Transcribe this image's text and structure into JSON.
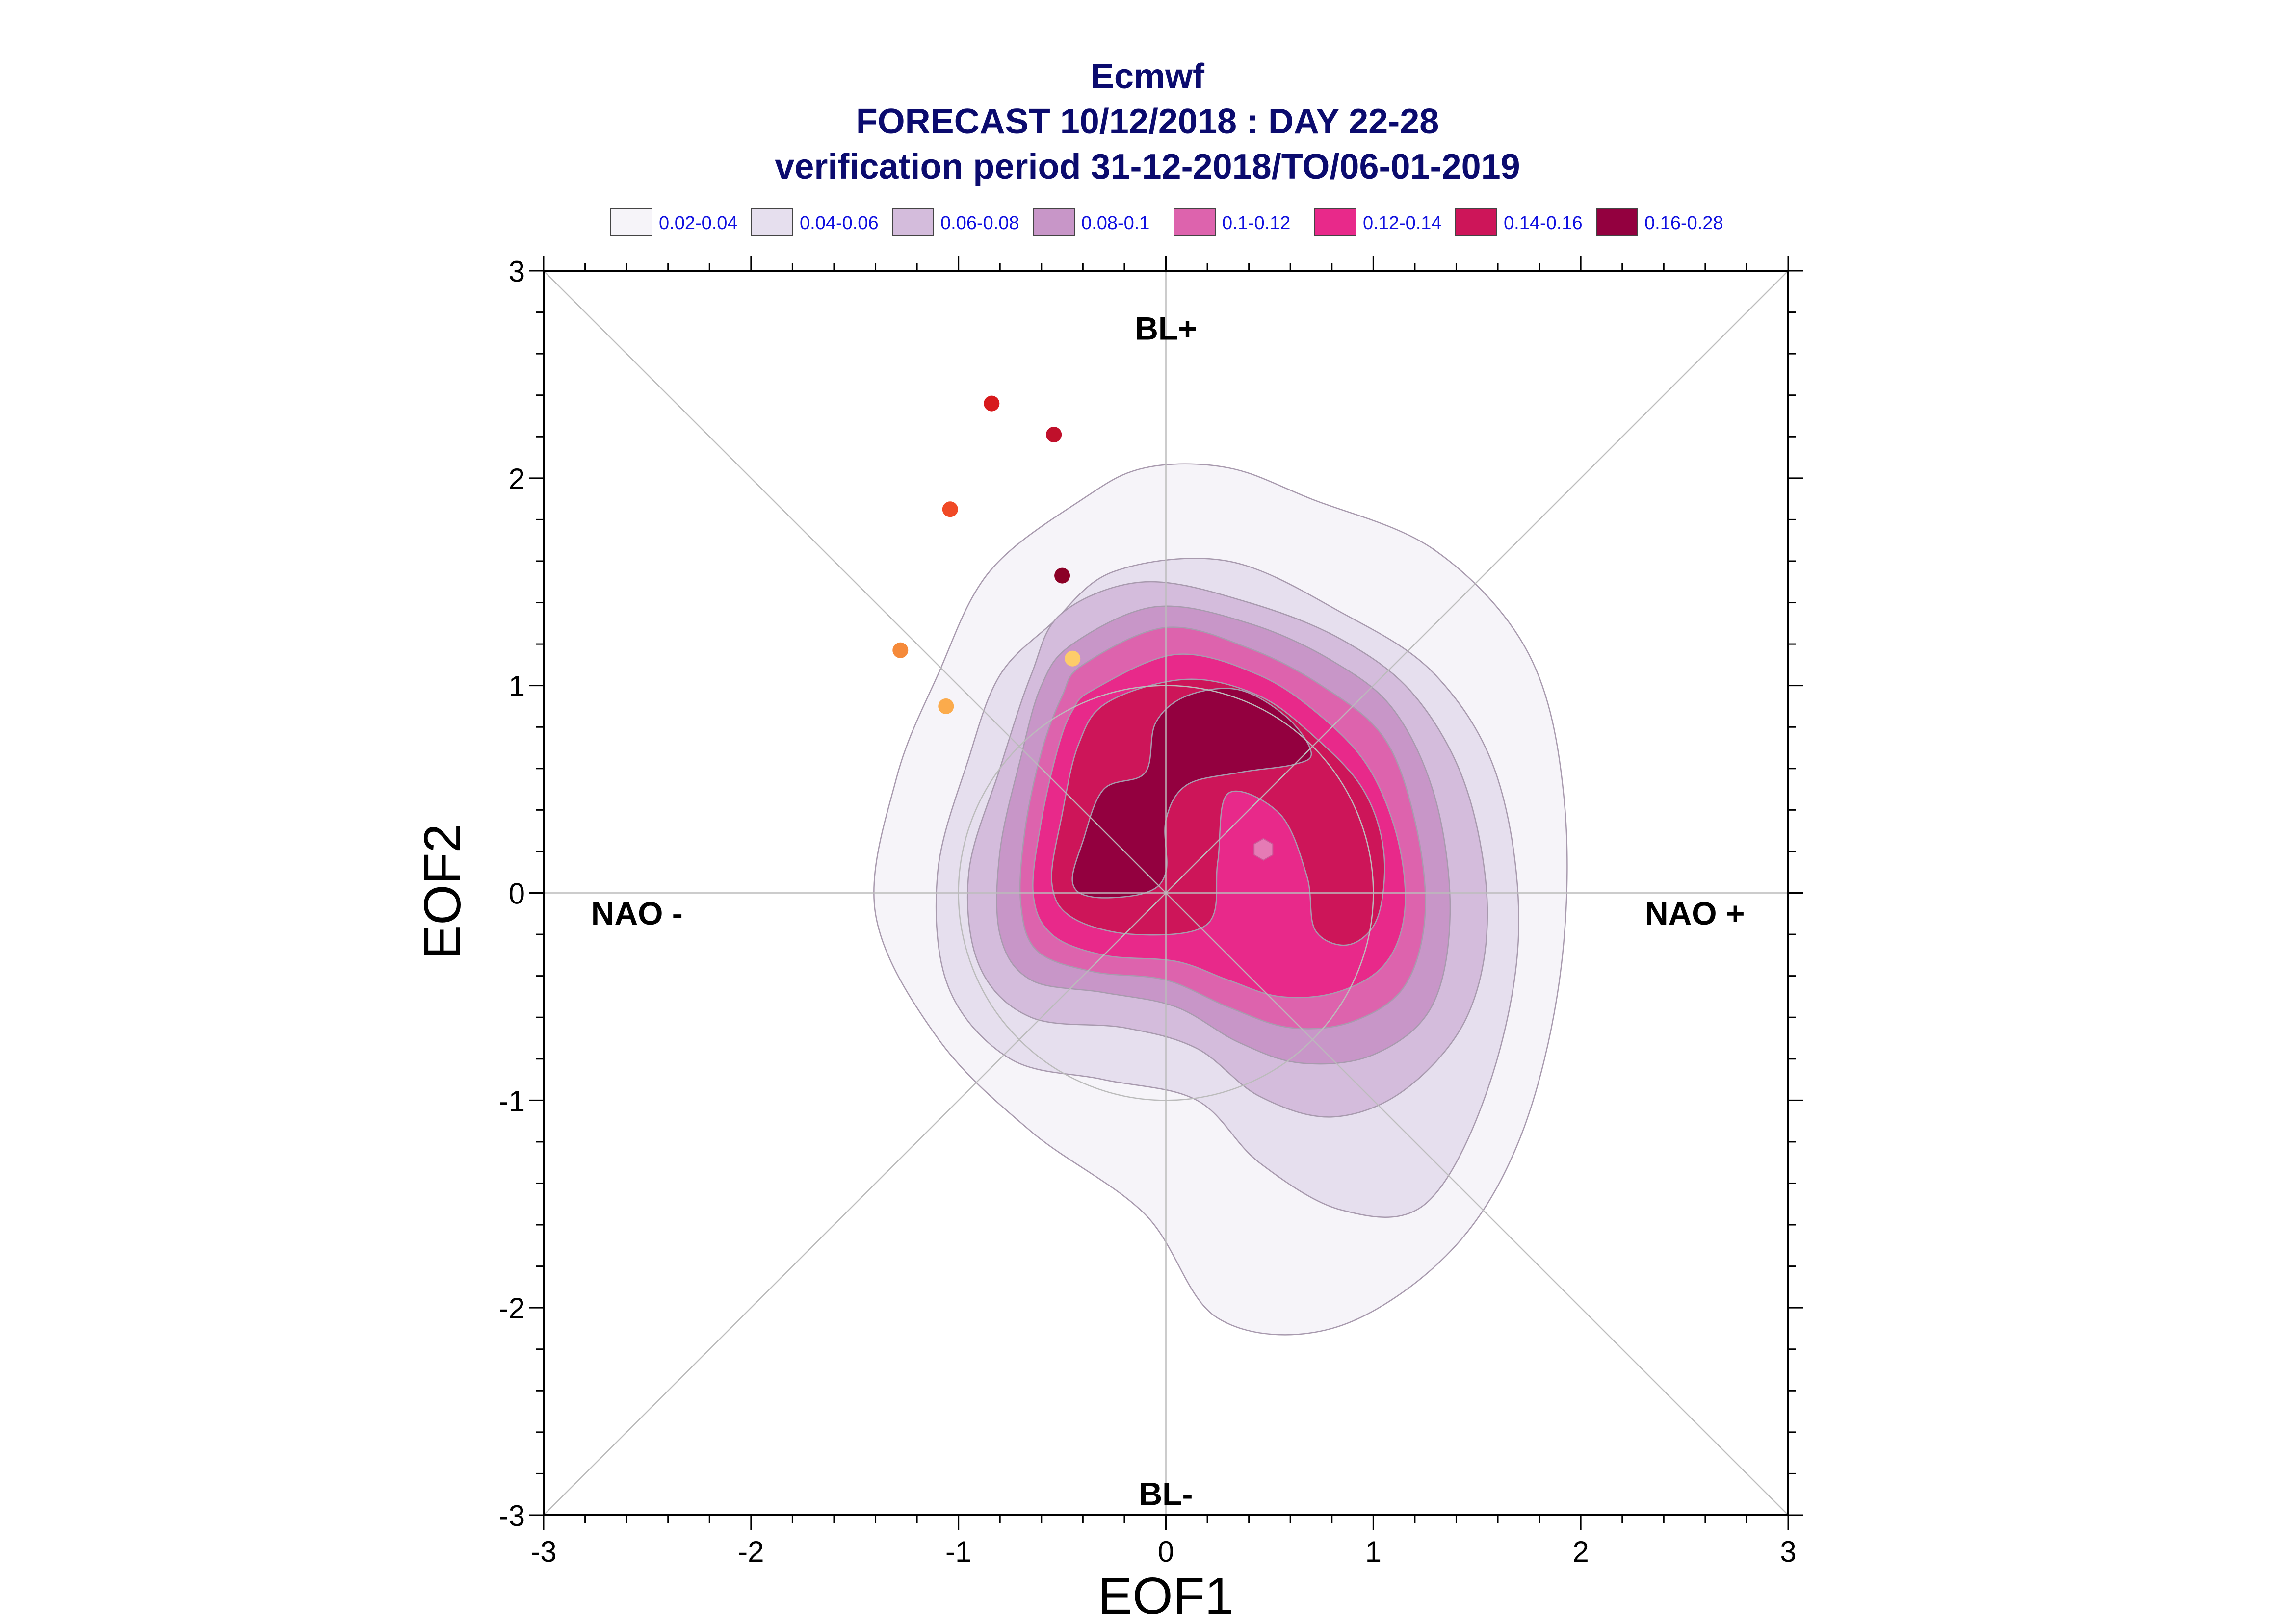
{
  "chart_data": {
    "type": "scatter",
    "title_lines": [
      "Ecmwf",
      "FORECAST 10/12/2018 : DAY 22-28",
      "verification period 31-12-2018/TO/06-01-2019"
    ],
    "xlabel": "EOF1",
    "ylabel": "EOF2",
    "xlim": [
      -3,
      3
    ],
    "ylim": [
      -3,
      3
    ],
    "xticks": [
      "-3",
      "-2",
      "-1",
      "0",
      "1",
      "2",
      "3"
    ],
    "yticks": [
      "-3",
      "-2",
      "-1",
      "0",
      "1",
      "2",
      "3"
    ],
    "grid": false,
    "regime_labels": [
      {
        "text": "BL+",
        "x": 0,
        "y": 2.72
      },
      {
        "text": "BL-",
        "x": 0,
        "y": -2.9
      },
      {
        "text": "NAO -",
        "x": -2.55,
        "y": -0.1
      },
      {
        "text": "NAO +",
        "x": 2.55,
        "y": -0.1
      }
    ],
    "legend": {
      "position": "top",
      "entries": [
        {
          "label": "0.02-0.04",
          "color": "#f6f4f9"
        },
        {
          "label": "0.04-0.06",
          "color": "#e6dfee"
        },
        {
          "label": "0.06-0.08",
          "color": "#d4bcdc"
        },
        {
          "label": "0.08-0.1",
          "color": "#c896c8"
        },
        {
          "label": "0.1-0.12",
          "color": "#dd63ad"
        },
        {
          "label": "0.12-0.14",
          "color": "#e8298a"
        },
        {
          "label": "0.14-0.16",
          "color": "#cd1559"
        },
        {
          "label": "0.16-0.28",
          "color": "#93003f"
        }
      ]
    },
    "density_contours": [
      {
        "level": "0.02-0.04",
        "color": "#f6f4f9",
        "points": [
          [
            -0.4,
            1.9
          ],
          [
            -0.1,
            2.05
          ],
          [
            0.3,
            2.05
          ],
          [
            0.7,
            1.9
          ],
          [
            1.3,
            1.65
          ],
          [
            1.75,
            1.15
          ],
          [
            1.92,
            0.45
          ],
          [
            1.9,
            -0.4
          ],
          [
            1.7,
            -1.2
          ],
          [
            1.35,
            -1.75
          ],
          [
            0.8,
            -2.1
          ],
          [
            0.25,
            -2.05
          ],
          [
            -0.1,
            -1.55
          ],
          [
            -0.65,
            -1.15
          ],
          [
            -1.1,
            -0.7
          ],
          [
            -1.4,
            -0.1
          ],
          [
            -1.3,
            0.55
          ],
          [
            -1.1,
            1.05
          ],
          [
            -0.85,
            1.55
          ]
        ]
      },
      {
        "level": "0.04-0.06",
        "color": "#e6dfee",
        "points": [
          [
            -0.55,
            1.3
          ],
          [
            -0.25,
            1.55
          ],
          [
            0.3,
            1.6
          ],
          [
            0.85,
            1.35
          ],
          [
            1.3,
            1.05
          ],
          [
            1.6,
            0.55
          ],
          [
            1.7,
            -0.2
          ],
          [
            1.55,
            -0.95
          ],
          [
            1.25,
            -1.5
          ],
          [
            0.85,
            -1.53
          ],
          [
            0.45,
            -1.3
          ],
          [
            0.15,
            -1.0
          ],
          [
            -0.3,
            -0.9
          ],
          [
            -0.75,
            -0.8
          ],
          [
            -1.05,
            -0.45
          ],
          [
            -1.1,
            0.1
          ],
          [
            -0.95,
            0.65
          ],
          [
            -0.8,
            1.05
          ]
        ]
      },
      {
        "level": "0.06-0.08",
        "color": "#d4bcdc",
        "points": [
          [
            -0.5,
            1.35
          ],
          [
            -0.1,
            1.5
          ],
          [
            0.4,
            1.4
          ],
          [
            0.85,
            1.22
          ],
          [
            1.2,
            0.95
          ],
          [
            1.45,
            0.5
          ],
          [
            1.55,
            -0.1
          ],
          [
            1.45,
            -0.6
          ],
          [
            1.15,
            -0.95
          ],
          [
            0.8,
            -1.08
          ],
          [
            0.45,
            -0.98
          ],
          [
            0.15,
            -0.75
          ],
          [
            -0.2,
            -0.65
          ],
          [
            -0.65,
            -0.6
          ],
          [
            -0.9,
            -0.35
          ],
          [
            -0.95,
            0.1
          ],
          [
            -0.8,
            0.6
          ],
          [
            -0.65,
            1.05
          ]
        ]
      },
      {
        "level": "0.08-0.1",
        "color": "#c896c8",
        "points": [
          [
            -0.45,
            1.2
          ],
          [
            -0.05,
            1.38
          ],
          [
            0.4,
            1.3
          ],
          [
            0.8,
            1.12
          ],
          [
            1.1,
            0.88
          ],
          [
            1.3,
            0.45
          ],
          [
            1.37,
            -0.1
          ],
          [
            1.28,
            -0.55
          ],
          [
            1.0,
            -0.78
          ],
          [
            0.65,
            -0.82
          ],
          [
            0.35,
            -0.72
          ],
          [
            0.05,
            -0.55
          ],
          [
            -0.3,
            -0.48
          ],
          [
            -0.65,
            -0.42
          ],
          [
            -0.8,
            -0.2
          ],
          [
            -0.8,
            0.2
          ],
          [
            -0.7,
            0.65
          ],
          [
            -0.6,
            1.0
          ]
        ]
      },
      {
        "level": "0.1-0.12",
        "color": "#dd63ad",
        "points": [
          [
            -0.4,
            1.1
          ],
          [
            0.0,
            1.28
          ],
          [
            0.4,
            1.18
          ],
          [
            0.75,
            1.0
          ],
          [
            1.05,
            0.75
          ],
          [
            1.2,
            0.35
          ],
          [
            1.25,
            -0.1
          ],
          [
            1.15,
            -0.45
          ],
          [
            0.9,
            -0.62
          ],
          [
            0.6,
            -0.65
          ],
          [
            0.3,
            -0.55
          ],
          [
            0.0,
            -0.42
          ],
          [
            -0.35,
            -0.38
          ],
          [
            -0.62,
            -0.28
          ],
          [
            -0.7,
            -0.05
          ],
          [
            -0.68,
            0.3
          ],
          [
            -0.6,
            0.68
          ],
          [
            -0.5,
            0.95
          ]
        ]
      },
      {
        "level": "0.12-0.14",
        "color": "#e8298a",
        "points": [
          [
            -0.35,
            0.98
          ],
          [
            0.05,
            1.15
          ],
          [
            0.45,
            1.05
          ],
          [
            0.75,
            0.85
          ],
          [
            0.98,
            0.6
          ],
          [
            1.12,
            0.25
          ],
          [
            1.15,
            -0.1
          ],
          [
            1.05,
            -0.35
          ],
          [
            0.82,
            -0.48
          ],
          [
            0.55,
            -0.5
          ],
          [
            0.3,
            -0.42
          ],
          [
            0.05,
            -0.33
          ],
          [
            -0.3,
            -0.3
          ],
          [
            -0.55,
            -0.2
          ],
          [
            -0.64,
            0.0
          ],
          [
            -0.6,
            0.35
          ],
          [
            -0.52,
            0.7
          ],
          [
            -0.45,
            0.88
          ]
        ]
      },
      {
        "level": "0.14-0.16",
        "color": "#cd1559",
        "points": [
          [
            -0.28,
            0.92
          ],
          [
            0.1,
            1.03
          ],
          [
            0.45,
            0.95
          ],
          [
            0.72,
            0.75
          ],
          [
            0.95,
            0.5
          ],
          [
            1.05,
            0.2
          ],
          [
            1.02,
            -0.12
          ],
          [
            0.88,
            -0.25
          ],
          [
            0.72,
            -0.18
          ],
          [
            0.68,
            0.08
          ],
          [
            0.55,
            0.38
          ],
          [
            0.3,
            0.48
          ],
          [
            0.25,
            0.15
          ],
          [
            0.2,
            -0.15
          ],
          [
            -0.15,
            -0.2
          ],
          [
            -0.45,
            -0.12
          ],
          [
            -0.55,
            0.05
          ],
          [
            -0.5,
            0.38
          ],
          [
            -0.42,
            0.72
          ]
        ]
      },
      {
        "level": "0.16-0.28",
        "color": "#93003f",
        "points": [
          [
            -0.05,
            0.82
          ],
          [
            0.1,
            0.95
          ],
          [
            0.35,
            0.98
          ],
          [
            0.58,
            0.85
          ],
          [
            0.7,
            0.68
          ],
          [
            0.62,
            0.62
          ],
          [
            0.35,
            0.58
          ],
          [
            0.1,
            0.52
          ],
          [
            0.0,
            0.35
          ],
          [
            0.0,
            0.1
          ],
          [
            -0.1,
            0.0
          ],
          [
            -0.35,
            -0.02
          ],
          [
            -0.45,
            0.05
          ],
          [
            -0.4,
            0.25
          ],
          [
            -0.3,
            0.5
          ],
          [
            -0.1,
            0.58
          ]
        ]
      }
    ],
    "points": [
      {
        "x": -0.84,
        "y": 2.36,
        "color": "#d7191c"
      },
      {
        "x": -0.54,
        "y": 2.21,
        "color": "#c0102b"
      },
      {
        "x": -1.04,
        "y": 1.85,
        "color": "#f04a26"
      },
      {
        "x": -0.5,
        "y": 1.53,
        "color": "#8b0026"
      },
      {
        "x": -1.28,
        "y": 1.17,
        "color": "#f58a3a"
      },
      {
        "x": -0.45,
        "y": 1.13,
        "color": "#fdcc6a"
      },
      {
        "x": -1.06,
        "y": 0.9,
        "color": "#fbab4c"
      }
    ],
    "ensemble_mean": {
      "x": 0.47,
      "y": 0.21,
      "color": "#e57bb5"
    },
    "reference_circle": {
      "center": [
        0,
        0
      ],
      "radius": 1
    }
  }
}
